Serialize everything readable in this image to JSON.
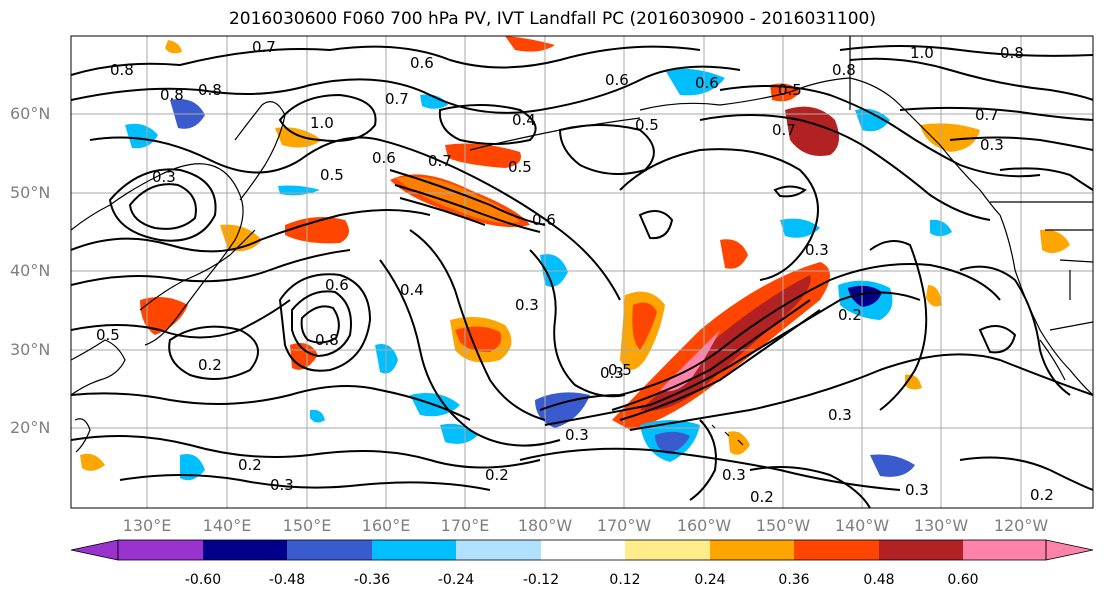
{
  "title": "2016030600 F060 700 hPa PV, IVT Landfall PC (2016030900 - 2016031100)",
  "lat_labels": [
    "60°N",
    "50°N",
    "40°N",
    "30°N",
    "20°N"
  ],
  "lon_labels": [
    "130°E",
    "140°E",
    "150°E",
    "160°E",
    "170°E",
    "180°W",
    "170°W",
    "160°W",
    "150°W",
    "140°W",
    "130°W",
    "120°W"
  ],
  "colorbar": {
    "ticks": [
      "-0.60",
      "-0.48",
      "-0.36",
      "-0.24",
      "-0.12",
      "0.12",
      "0.24",
      "0.36",
      "0.48",
      "0.60"
    ],
    "colors": [
      "#9a32cd",
      "#00008b",
      "#3a5bcd",
      "#00bfff",
      "#b0e2ff",
      "#ffffff",
      "#ffec8b",
      "#ffa500",
      "#ff4500",
      "#b22222",
      "#ff82ab"
    ]
  },
  "contour_labels": [
    "0.7",
    "0.8",
    "0.8",
    "0.6",
    "0.8",
    "1.0",
    "0.7",
    "0.5",
    "0.6",
    "0.7",
    "0.5",
    "0.3",
    "0.6",
    "0.3",
    "0.4",
    "0.6",
    "0.8",
    "0.2",
    "0.5",
    "0.3",
    "0.3",
    "0.5",
    "0.3",
    "0.2",
    "0.3",
    "0.2",
    "0.3",
    "0.2",
    "0.3",
    "0.2",
    "0.5",
    "0.6",
    "0.6",
    "0.7",
    "0.8",
    "1.0",
    "0.8",
    "0.7",
    "0.3",
    "0.2",
    "0.3",
    "0.5",
    "0.4"
  ],
  "legend_colors": {
    "contour": "#000000",
    "coast": "#000000",
    "grid": "#a9a9a9"
  }
}
